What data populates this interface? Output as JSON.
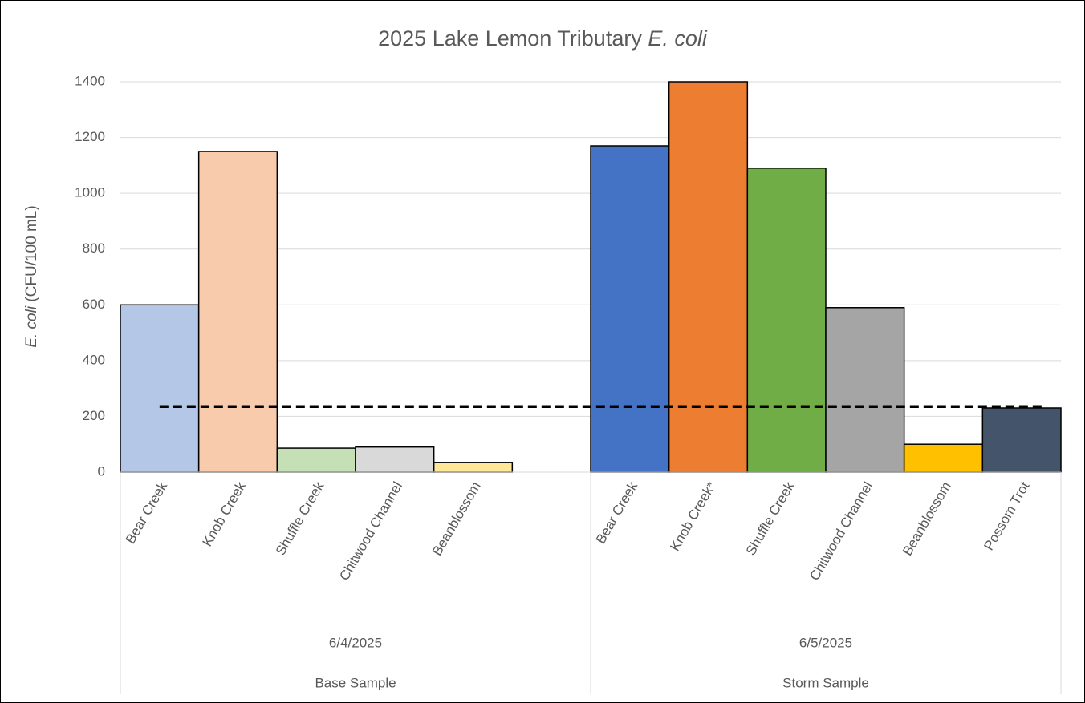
{
  "chart_data": {
    "type": "bar",
    "title": [
      "2025 Lake Lemon Tributary ",
      "E. coli"
    ],
    "ylabel": [
      "E. coli",
      " (CFU/100 mL)"
    ],
    "ylim": [
      0,
      1400
    ],
    "yticks": [
      0,
      200,
      400,
      600,
      800,
      1000,
      1200,
      1400
    ],
    "grid": true,
    "threshold": 235,
    "groups": [
      {
        "name": "Base Sample",
        "date": "6/4/2025",
        "categories": [
          "Bear Creek",
          "Knob Creek",
          "Shuffle Creek",
          "Chitwood Channel",
          "Beanblossom"
        ],
        "values": [
          600,
          1150,
          86,
          90,
          35
        ],
        "colors": [
          "#b4c7e7",
          "#f8cbad",
          "#c5e0b4",
          "#d9d9d9",
          "#ffe699"
        ]
      },
      {
        "name": "Storm Sample",
        "date": "6/5/2025",
        "categories": [
          "Bear Creek",
          "Knob Creek*",
          "Shuffle Creek",
          "Chitwood Channel",
          "Beanblossom",
          "Possom Trot"
        ],
        "values": [
          1170,
          1400,
          1090,
          590,
          100,
          230
        ],
        "colors": [
          "#4472c4",
          "#ed7d31",
          "#70ad47",
          "#a5a5a5",
          "#ffc000",
          "#44546a"
        ]
      }
    ]
  }
}
